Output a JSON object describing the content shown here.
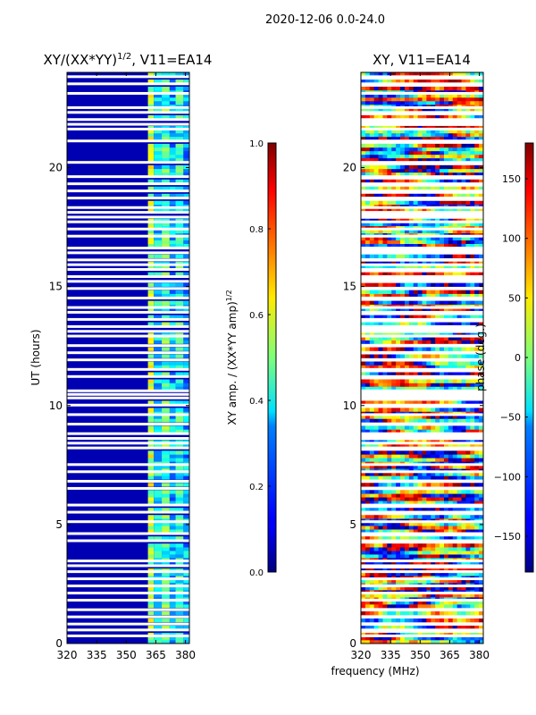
{
  "figure_title": "2020-12-06 0.0-24.0",
  "chart_data": [
    {
      "type": "heatmap",
      "title": "XY/(XX*YY)",
      "title_exponent": "1/2",
      "title_suffix": ", V11=EA14",
      "ylabel": "UT (hours)",
      "xlabel": "",
      "xlim": [
        320,
        382
      ],
      "ylim": [
        0,
        24
      ],
      "xticks": [
        320,
        335,
        350,
        365,
        380
      ],
      "yticks": [
        0,
        5,
        10,
        15,
        20
      ],
      "colormap": "jet",
      "colorbar": {
        "label": "XY amp. / (XX*YY amp)",
        "label_exponent": "1/2",
        "range": [
          0.0,
          1.0
        ],
        "ticks": [
          "0.0",
          "0.2",
          "0.4",
          "0.6",
          "0.8",
          "1.0"
        ]
      },
      "description_bands": [
        {
          "x_start": 320,
          "x_end": 361,
          "value": 0.05
        },
        {
          "x_start": 361,
          "x_end": 364,
          "value": 0.55
        },
        {
          "x_start": 364,
          "x_end": 368,
          "value": 0.35
        },
        {
          "x_start": 368,
          "x_end": 372,
          "value": 0.45
        },
        {
          "x_start": 372,
          "x_end": 375,
          "value": 0.3
        },
        {
          "x_start": 375,
          "x_end": 379,
          "value": 0.4
        },
        {
          "x_start": 379,
          "x_end": 382,
          "value": 0.3
        }
      ]
    },
    {
      "type": "heatmap",
      "title": "XY, V11=EA14",
      "ylabel": "",
      "xlabel": "frequency (MHz)",
      "xlim": [
        320,
        382
      ],
      "ylim": [
        0,
        24
      ],
      "xticks": [
        320,
        335,
        350,
        365,
        380
      ],
      "yticks": [
        0,
        5,
        10,
        15,
        20
      ],
      "colormap": "jet",
      "colorbar": {
        "label": "phase (deg.)",
        "range": [
          -180,
          180
        ],
        "ticks": [
          "150",
          "100",
          "50",
          "0",
          "−50",
          "−100",
          "−150"
        ]
      }
    }
  ]
}
